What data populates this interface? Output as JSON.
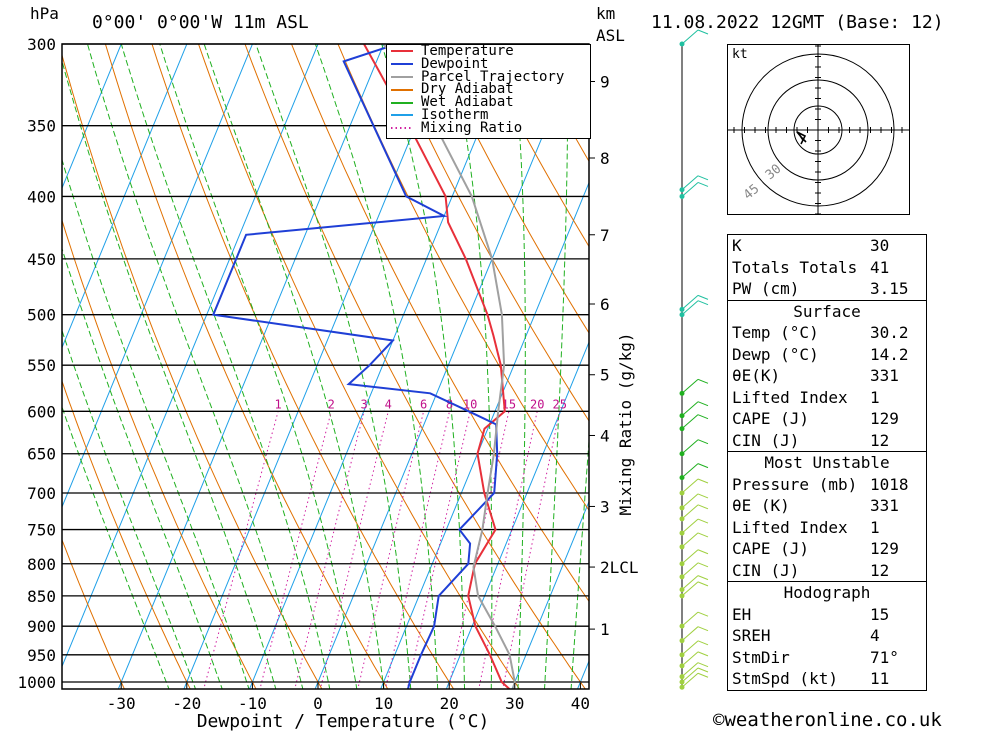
{
  "header": {
    "location": "0°00' 0°00'W 11m ASL",
    "datetime": "11.08.2022 12GMT (Base: 12)",
    "hpa_label": "hPa",
    "km_label": "km",
    "asl_label": "ASL",
    "kt_label": "kt"
  },
  "legend": [
    {
      "label": "Temperature",
      "color": "#e8303a",
      "dash": "none"
    },
    {
      "label": "Dewpoint",
      "color": "#1f3fd6",
      "dash": "none"
    },
    {
      "label": "Parcel Trajectory",
      "color": "#a0a0a0",
      "dash": "none"
    },
    {
      "label": "Dry Adiabat",
      "color": "#e07000",
      "dash": "none"
    },
    {
      "label": "Wet Adiabat",
      "color": "#20b020",
      "dash": "none"
    },
    {
      "label": "Isotherm",
      "color": "#1fa0e8",
      "dash": "none"
    },
    {
      "label": "Mixing Ratio",
      "color": "#d020a0",
      "dash": "dot"
    }
  ],
  "chart_data": {
    "type": "line",
    "xlabel": "Dewpoint / Temperature (°C)",
    "ylabel_right": "Mixing Ratio (g/kg)",
    "x_ticks": [
      -30,
      -20,
      -10,
      0,
      10,
      20,
      30,
      40
    ],
    "pressure_levels": [
      300,
      350,
      400,
      450,
      500,
      550,
      600,
      650,
      700,
      750,
      800,
      850,
      900,
      950,
      1000
    ],
    "km_labels": [
      {
        "label": "9",
        "p": 322
      },
      {
        "label": "8",
        "p": 372
      },
      {
        "label": "7",
        "p": 430
      },
      {
        "label": "6",
        "p": 490
      },
      {
        "label": "5",
        "p": 560
      },
      {
        "label": "4",
        "p": 628
      },
      {
        "label": "3",
        "p": 718
      },
      {
        "label": "2LCL",
        "p": 805
      },
      {
        "label": "1",
        "p": 905
      }
    ],
    "mixing_ratio_labels": [
      "1",
      "2",
      "3",
      "4",
      "6",
      "8",
      "10",
      "15",
      "20",
      "25"
    ],
    "series": [
      {
        "name": "Temperature",
        "color": "#e8303a",
        "points": [
          [
            1018,
            30.2
          ],
          [
            1000,
            28
          ],
          [
            950,
            24.5
          ],
          [
            900,
            20.5
          ],
          [
            850,
            17.5
          ],
          [
            800,
            16.5
          ],
          [
            750,
            17.5
          ],
          [
            700,
            13.5
          ],
          [
            650,
            10
          ],
          [
            620,
            9.5
          ],
          [
            600,
            11.5
          ],
          [
            550,
            8
          ],
          [
            520,
            5
          ],
          [
            500,
            2.8
          ],
          [
            450,
            -4
          ],
          [
            420,
            -9
          ],
          [
            400,
            -11
          ],
          [
            350,
            -21
          ],
          [
            300,
            -33
          ]
        ]
      },
      {
        "name": "Dewpoint",
        "color": "#1f3fd6",
        "points": [
          [
            1018,
            14.2
          ],
          [
            1000,
            14
          ],
          [
            950,
            14
          ],
          [
            900,
            14.2
          ],
          [
            850,
            13
          ],
          [
            800,
            15.5
          ],
          [
            770,
            14.5
          ],
          [
            750,
            12
          ],
          [
            700,
            15
          ],
          [
            650,
            13
          ],
          [
            615,
            11
          ],
          [
            600,
            6
          ],
          [
            580,
            -1
          ],
          [
            570,
            -14
          ],
          [
            550,
            -12
          ],
          [
            525,
            -10
          ],
          [
            500,
            -39
          ],
          [
            450,
            -39
          ],
          [
            430,
            -39
          ],
          [
            415,
            -10
          ],
          [
            400,
            -17
          ],
          [
            310,
            -35
          ],
          [
            300,
            -28
          ]
        ]
      },
      {
        "name": "Parcel Trajectory",
        "color": "#a0a0a0",
        "points": [
          [
            1018,
            30.2
          ],
          [
            1000,
            30
          ],
          [
            950,
            27.5
          ],
          [
            900,
            23.5
          ],
          [
            850,
            19
          ],
          [
            805,
            16.5
          ],
          [
            750,
            15.5
          ],
          [
            700,
            14
          ],
          [
            650,
            12.5
          ],
          [
            600,
            10.5
          ],
          [
            550,
            8.5
          ],
          [
            500,
            5
          ],
          [
            450,
            0
          ],
          [
            400,
            -7
          ],
          [
            350,
            -17
          ],
          [
            300,
            -30
          ]
        ]
      }
    ]
  },
  "hodograph_labels": [
    "30",
    "45"
  ],
  "indices": {
    "general": [
      {
        "label": "K",
        "value": "30"
      },
      {
        "label": "Totals Totals",
        "value": "41"
      },
      {
        "label": "PW (cm)",
        "value": "3.15"
      }
    ],
    "surface_title": "Surface",
    "surface": [
      {
        "label": "Temp (°C)",
        "value": "30.2"
      },
      {
        "label": "Dewp (°C)",
        "value": "14.2"
      },
      {
        "label": "θE(K)",
        "value": "331"
      },
      {
        "label": "Lifted Index",
        "value": "1"
      },
      {
        "label": "CAPE (J)",
        "value": "129"
      },
      {
        "label": "CIN (J)",
        "value": "12"
      }
    ],
    "mu_title": "Most Unstable",
    "mu": [
      {
        "label": "Pressure (mb)",
        "value": "1018"
      },
      {
        "label": "θE (K)",
        "value": "331"
      },
      {
        "label": "Lifted Index",
        "value": "1"
      },
      {
        "label": "CAPE (J)",
        "value": "129"
      },
      {
        "label": "CIN (J)",
        "value": "12"
      }
    ],
    "hodo_title": "Hodograph",
    "hodo": [
      {
        "label": "EH",
        "value": "15"
      },
      {
        "label": "SREH",
        "value": "4"
      },
      {
        "label": "StmDir",
        "value": "71°"
      },
      {
        "label": "StmSpd (kt)",
        "value": "11"
      }
    ]
  },
  "footer": "©weatheronline.co.uk"
}
